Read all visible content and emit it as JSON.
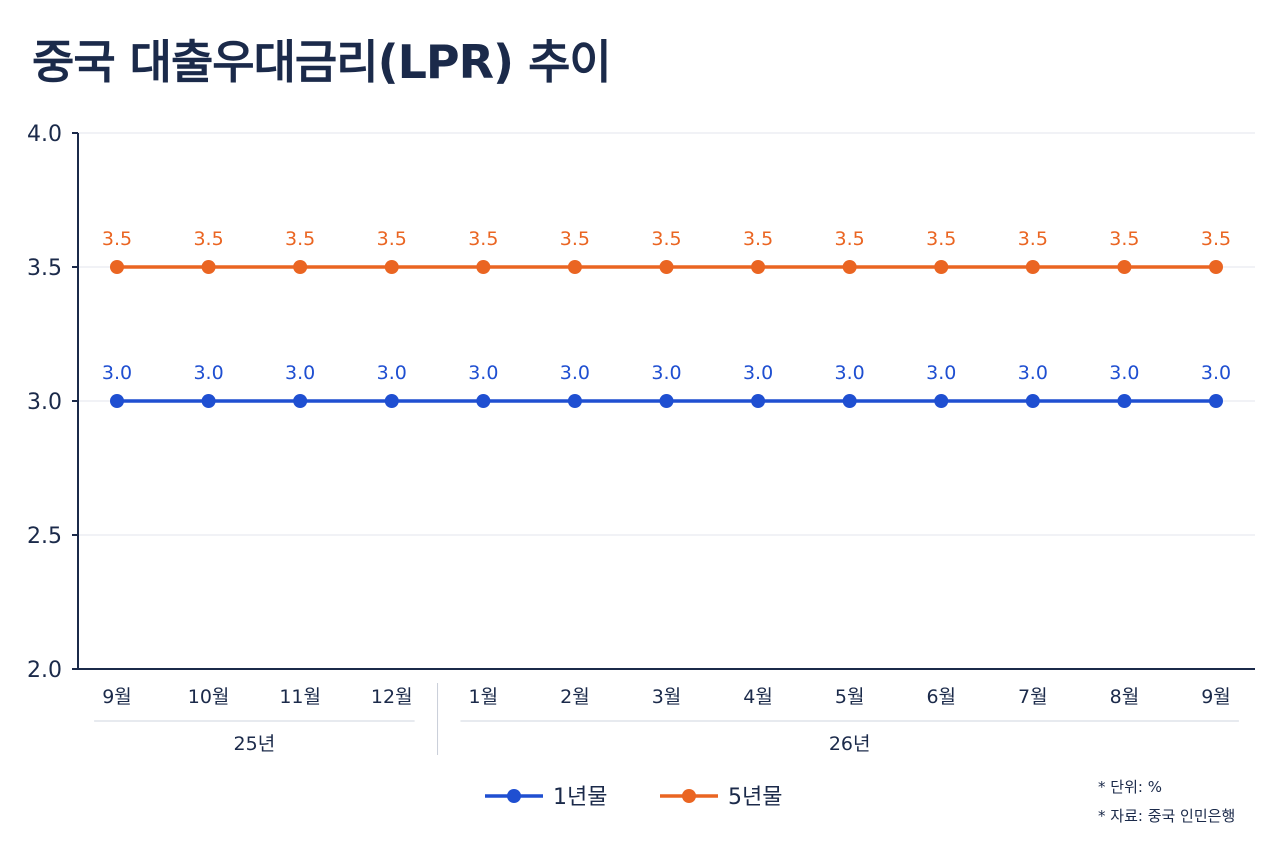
{
  "title": "중국 대출우대금리(LPR) 추이",
  "chart_data": {
    "type": "line",
    "title": "중국 대출우대금리(LPR) 추이",
    "categories": [
      "9월",
      "10월",
      "11월",
      "12월",
      "1월",
      "2월",
      "3월",
      "4월",
      "5월",
      "6월",
      "7월",
      "8월",
      "9월"
    ],
    "category_groups": [
      {
        "label": "25년",
        "span": 4
      },
      {
        "label": "26년",
        "span": 9
      }
    ],
    "yticks": [
      "2.0",
      "2.5",
      "3.0",
      "3.5",
      "4.0"
    ],
    "ylim": [
      2.0,
      4.0
    ],
    "grid": true,
    "legend_position": "bottom-center",
    "series": [
      {
        "name": "1년물",
        "color": "#1f4fd1",
        "values": [
          3.0,
          3.0,
          3.0,
          3.0,
          3.0,
          3.0,
          3.0,
          3.0,
          3.0,
          3.0,
          3.0,
          3.0,
          3.0
        ],
        "labels": [
          "3.0",
          "3.0",
          "3.0",
          "3.0",
          "3.0",
          "3.0",
          "3.0",
          "3.0",
          "3.0",
          "3.0",
          "3.0",
          "3.0",
          "3.0"
        ]
      },
      {
        "name": "5년물",
        "color": "#ea6522",
        "values": [
          3.5,
          3.5,
          3.5,
          3.5,
          3.5,
          3.5,
          3.5,
          3.5,
          3.5,
          3.5,
          3.5,
          3.5,
          3.5
        ],
        "labels": [
          "3.5",
          "3.5",
          "3.5",
          "3.5",
          "3.5",
          "3.5",
          "3.5",
          "3.5",
          "3.5",
          "3.5",
          "3.5",
          "3.5",
          "3.5"
        ]
      }
    ]
  },
  "notes": [
    "* 단위: %",
    "* 자료: 중국 인민은행"
  ]
}
